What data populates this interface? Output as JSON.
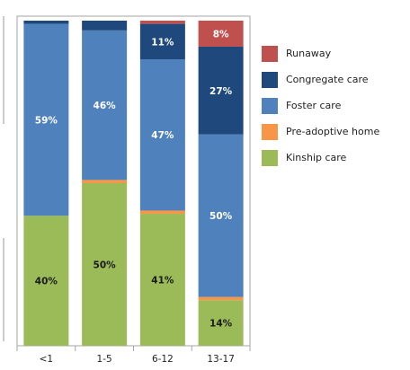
{
  "chart_data": {
    "type": "bar",
    "stacked": true,
    "normalized": true,
    "categories": [
      "<1",
      "1-5",
      "6-12",
      "13-17"
    ],
    "ylim": [
      0,
      100
    ],
    "legend_position": "right",
    "series": [
      {
        "name": "Kinship care",
        "color": "#9BBB59",
        "values": [
          40,
          50,
          41,
          14
        ],
        "labels": [
          "40%",
          "50%",
          "41%",
          "14%"
        ]
      },
      {
        "name": "Pre-adoptive home",
        "color": "#F79646",
        "values": [
          0,
          1,
          1,
          1
        ],
        "labels": [
          "",
          "",
          "",
          ""
        ]
      },
      {
        "name": "Foster care",
        "color": "#4F81BD",
        "values": [
          59,
          46,
          47,
          50
        ],
        "labels": [
          "59%",
          "46%",
          "47%",
          "50%"
        ]
      },
      {
        "name": "Congregate care",
        "color": "#1F497D",
        "values": [
          1,
          3,
          11,
          27
        ],
        "labels": [
          "",
          "",
          "11%",
          "27%"
        ]
      },
      {
        "name": "Runaway",
        "color": "#C0504D",
        "values": [
          0,
          0,
          1,
          8
        ],
        "labels": [
          "",
          "",
          "",
          "8%"
        ]
      }
    ],
    "legend_order": [
      "Runaway",
      "Congregate care",
      "Foster care",
      "Pre-adoptive home",
      "Kinship care"
    ]
  }
}
